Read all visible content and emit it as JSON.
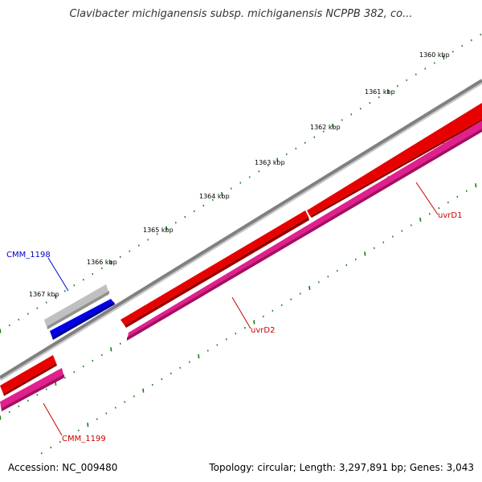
{
  "title": "Clavibacter michiganensis subsp. michiganensis NCPPB 382, co...",
  "footer": {
    "accession": "Accession: NC_009480",
    "summary": "Topology: circular; Length: 3,297,891 bp; Genes: 3,043"
  },
  "colors": {
    "backbone": "#808080",
    "forward_gene": "#e60000",
    "cds": "#e0208e",
    "tick": "#1a7a1a",
    "gray_feature": "#c0c0c0",
    "blue_feature": "#0000e6",
    "red_label": "#cc0000",
    "blue_label": "#0000cc"
  },
  "scale": {
    "ticks": [
      "1360 kbp",
      "1361 kbp",
      "1362 kbp",
      "1363 kbp",
      "1364 kbp",
      "1365 kbp",
      "1366 kbp",
      "1367 kbp"
    ]
  },
  "genes": [
    {
      "name": "uvrD1",
      "color": "red"
    },
    {
      "name": "uvrD2",
      "color": "red"
    },
    {
      "name": "CMM_1198",
      "color": "blue"
    },
    {
      "name": "CMM_1199",
      "color": "red"
    }
  ]
}
